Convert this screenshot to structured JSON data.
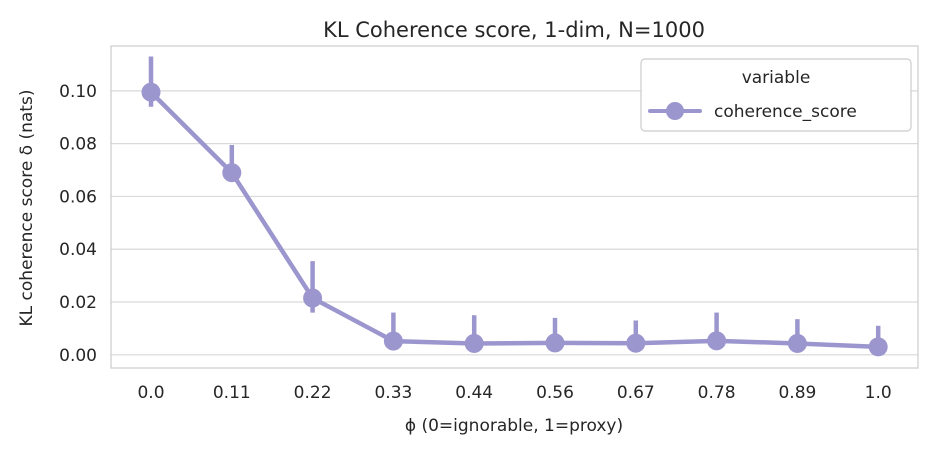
{
  "chart_data": {
    "type": "line",
    "title": "KL Coherence score, 1-dim, N=1000",
    "xlabel": "ϕ (0=ignorable, 1=proxy)",
    "ylabel": "KL coherence score δ (nats)",
    "categories": [
      "0.0",
      "0.11",
      "0.22",
      "0.33",
      "0.44",
      "0.56",
      "0.67",
      "0.78",
      "0.89",
      "1.0"
    ],
    "ylim": [
      -0.005,
      0.117
    ],
    "yticks": [
      0.0,
      0.02,
      0.04,
      0.06,
      0.08,
      0.1
    ],
    "ytick_labels": [
      "0.00",
      "0.02",
      "0.04",
      "0.06",
      "0.08",
      "0.10"
    ],
    "grid": true,
    "legend": {
      "title": "variable",
      "placement": "top-right"
    },
    "series": [
      {
        "name": "coherence_score",
        "color": "#9b96ce",
        "values": [
          0.0995,
          0.069,
          0.0215,
          0.0052,
          0.0043,
          0.0045,
          0.0044,
          0.0053,
          0.0043,
          0.003
        ],
        "err_low": [
          0.094,
          0.066,
          0.016,
          0.004,
          0.003,
          0.003,
          0.003,
          0.004,
          0.003,
          0.002
        ],
        "err_high": [
          0.113,
          0.0795,
          0.0355,
          0.016,
          0.015,
          0.014,
          0.013,
          0.016,
          0.0135,
          0.011
        ]
      }
    ]
  }
}
